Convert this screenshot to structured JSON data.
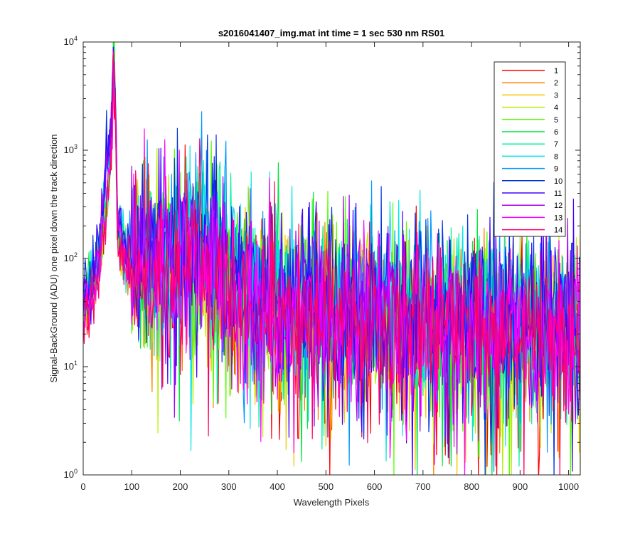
{
  "chart_data": {
    "type": "line",
    "title": "s2016041407_img.mat int time = 1 sec  530 nm RS01",
    "xlabel": "Wavelength Pixels",
    "ylabel": "Signal-BackGround (ADU) one pixel down the track direction",
    "xlim": [
      0,
      1024
    ],
    "ylim": [
      1,
      10000
    ],
    "yscale": "log",
    "grid": false,
    "legend_position": "top-right",
    "x_ticks": [
      "0",
      "100",
      "200",
      "300",
      "400",
      "500",
      "600",
      "700",
      "800",
      "900",
      "1000"
    ],
    "y_ticks": [
      {
        "base": "10",
        "exp": "0"
      },
      {
        "base": "10",
        "exp": "1"
      },
      {
        "base": "10",
        "exp": "2"
      },
      {
        "base": "10",
        "exp": "3"
      },
      {
        "base": "10",
        "exp": "4"
      }
    ],
    "profile_points": {
      "x": [
        0,
        20,
        35,
        45,
        55,
        60,
        63,
        66,
        70,
        80,
        100,
        150,
        200,
        240,
        280,
        320,
        400,
        500,
        600,
        700,
        800,
        900,
        1024
      ],
      "y": [
        35,
        60,
        120,
        300,
        700,
        3000,
        8000,
        3000,
        300,
        120,
        100,
        95,
        110,
        120,
        80,
        50,
        40,
        35,
        30,
        28,
        26,
        25,
        24
      ]
    },
    "series": [
      {
        "name": "1",
        "color": "#ff0000",
        "peak": 3500,
        "scale": 0.8
      },
      {
        "name": "2",
        "color": "#ff7f00",
        "peak": 4200,
        "scale": 0.85
      },
      {
        "name": "3",
        "color": "#f2c800",
        "peak": 5000,
        "scale": 0.9
      },
      {
        "name": "4",
        "color": "#b4f000",
        "peak": 9800,
        "scale": 0.95
      },
      {
        "name": "5",
        "color": "#55ff00",
        "peak": 9500,
        "scale": 1.0
      },
      {
        "name": "6",
        "color": "#00e640",
        "peak": 9000,
        "scale": 1.0
      },
      {
        "name": "7",
        "color": "#00f0a0",
        "peak": 8500,
        "scale": 1.05
      },
      {
        "name": "8",
        "color": "#00e5e5",
        "peak": 8000,
        "scale": 1.1
      },
      {
        "name": "9",
        "color": "#0096ff",
        "peak": 8500,
        "scale": 1.15
      },
      {
        "name": "10",
        "color": "#0033dd",
        "peak": 9000,
        "scale": 1.2
      },
      {
        "name": "11",
        "color": "#4400ff",
        "peak": 9000,
        "scale": 1.1
      },
      {
        "name": "12",
        "color": "#a000f0",
        "peak": 8500,
        "scale": 1.0
      },
      {
        "name": "13",
        "color": "#ff00ff",
        "peak": 6000,
        "scale": 0.9
      },
      {
        "name": "14",
        "color": "#ff0066",
        "peak": 3500,
        "scale": 0.8
      }
    ]
  }
}
